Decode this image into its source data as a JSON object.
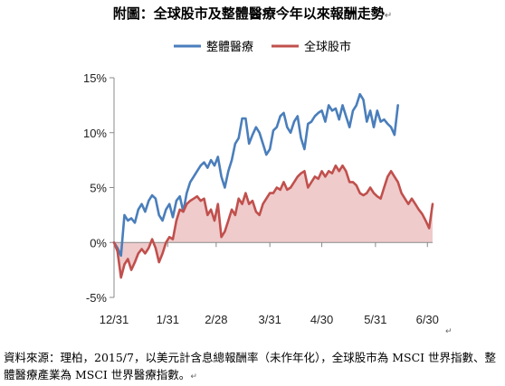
{
  "title": "附圖：全球股市及整體醫療今年以來報酬走勢",
  "paragraph_mark": "↵",
  "source_note": "資料來源：理柏，2015/7，以美元計含息總報酬率（未作年化），全球股市為 MSCI 世界指數、整體醫療產業為 MSCI 世界醫療指數。",
  "chart_data": {
    "type": "line",
    "ylim": [
      -5,
      15
    ],
    "yticks": [
      "15%",
      "10%",
      "5%",
      "0%",
      "-5%"
    ],
    "xticks": [
      "12/31",
      "1/31",
      "2/28",
      "3/31",
      "4/30",
      "5/31",
      "6/30"
    ],
    "grid": false,
    "legend": "top",
    "series": [
      {
        "name": "整體醫療",
        "color": "#4a7ebb",
        "points": [
          [
            0,
            0.0
          ],
          [
            2,
            -0.5
          ],
          [
            4,
            -1.2
          ],
          [
            6,
            2.5
          ],
          [
            8,
            2.0
          ],
          [
            10,
            2.2
          ],
          [
            12,
            1.8
          ],
          [
            14,
            3.0
          ],
          [
            16,
            3.5
          ],
          [
            18,
            2.8
          ],
          [
            20,
            3.8
          ],
          [
            22,
            4.3
          ],
          [
            24,
            4.0
          ],
          [
            26,
            2.5
          ],
          [
            28,
            2.0
          ],
          [
            30,
            3.0
          ],
          [
            32,
            3.5
          ],
          [
            34,
            2.3
          ],
          [
            36,
            3.8
          ],
          [
            38,
            4.2
          ],
          [
            40,
            2.8
          ],
          [
            42,
            4.5
          ],
          [
            44,
            5.5
          ],
          [
            46,
            6.0
          ],
          [
            48,
            6.5
          ],
          [
            50,
            7.0
          ],
          [
            52,
            7.3
          ],
          [
            54,
            6.8
          ],
          [
            56,
            7.5
          ],
          [
            58,
            7.0
          ],
          [
            60,
            7.8
          ],
          [
            62,
            6.0
          ],
          [
            64,
            5.0
          ],
          [
            66,
            6.5
          ],
          [
            68,
            7.5
          ],
          [
            70,
            9.0
          ],
          [
            72,
            9.5
          ],
          [
            74,
            11.3
          ],
          [
            76,
            11.3
          ],
          [
            78,
            9.0
          ],
          [
            80,
            9.8
          ],
          [
            82,
            10.5
          ],
          [
            84,
            10.0
          ],
          [
            86,
            9.0
          ],
          [
            88,
            8.0
          ],
          [
            90,
            8.5
          ],
          [
            92,
            10.2
          ],
          [
            94,
            10.5
          ],
          [
            96,
            11.5
          ],
          [
            98,
            11.8
          ],
          [
            100,
            10.5
          ],
          [
            102,
            10.0
          ],
          [
            104,
            11.0
          ],
          [
            106,
            11.5
          ],
          [
            108,
            9.5
          ],
          [
            110,
            8.5
          ],
          [
            112,
            10.8
          ],
          [
            114,
            11.0
          ],
          [
            116,
            11.5
          ],
          [
            118,
            11.8
          ],
          [
            120,
            12.0
          ],
          [
            122,
            11.0
          ],
          [
            124,
            12.5
          ],
          [
            126,
            12.0
          ],
          [
            128,
            12.2
          ],
          [
            130,
            11.2
          ],
          [
            132,
            12.5
          ],
          [
            134,
            11.5
          ],
          [
            136,
            10.5
          ],
          [
            138,
            12.0
          ],
          [
            140,
            12.5
          ],
          [
            142,
            13.5
          ],
          [
            144,
            13.0
          ],
          [
            146,
            11.0
          ],
          [
            148,
            12.0
          ],
          [
            150,
            10.5
          ],
          [
            152,
            12.0
          ],
          [
            154,
            11.0
          ],
          [
            156,
            11.2
          ],
          [
            158,
            10.8
          ],
          [
            160,
            10.5
          ],
          [
            162,
            9.8
          ],
          [
            164,
            12.5
          ]
        ]
      },
      {
        "name": "全球股市",
        "color": "#c0504d",
        "points": [
          [
            0,
            0.0
          ],
          [
            2,
            -0.8
          ],
          [
            4,
            -3.2
          ],
          [
            6,
            -2.0
          ],
          [
            8,
            -1.5
          ],
          [
            10,
            -2.5
          ],
          [
            12,
            -1.8
          ],
          [
            14,
            -1.0
          ],
          [
            16,
            -0.6
          ],
          [
            18,
            -1.0
          ],
          [
            20,
            -0.5
          ],
          [
            22,
            0.3
          ],
          [
            24,
            -0.5
          ],
          [
            26,
            -1.8
          ],
          [
            28,
            -1.0
          ],
          [
            30,
            0.0
          ],
          [
            32,
            0.5
          ],
          [
            34,
            0.3
          ],
          [
            36,
            2.0
          ],
          [
            38,
            3.0
          ],
          [
            40,
            2.8
          ],
          [
            42,
            3.5
          ],
          [
            44,
            3.8
          ],
          [
            46,
            4.0
          ],
          [
            48,
            4.2
          ],
          [
            50,
            3.8
          ],
          [
            52,
            4.0
          ],
          [
            54,
            2.5
          ],
          [
            56,
            3.0
          ],
          [
            58,
            2.0
          ],
          [
            60,
            3.5
          ],
          [
            62,
            0.5
          ],
          [
            64,
            1.0
          ],
          [
            66,
            2.0
          ],
          [
            68,
            3.0
          ],
          [
            70,
            2.5
          ],
          [
            72,
            4.0
          ],
          [
            74,
            3.5
          ],
          [
            76,
            4.5
          ],
          [
            78,
            3.5
          ],
          [
            80,
            3.8
          ],
          [
            82,
            2.8
          ],
          [
            84,
            2.5
          ],
          [
            86,
            3.5
          ],
          [
            88,
            4.0
          ],
          [
            90,
            4.5
          ],
          [
            92,
            4.5
          ],
          [
            94,
            5.0
          ],
          [
            96,
            4.8
          ],
          [
            98,
            5.5
          ],
          [
            100,
            4.8
          ],
          [
            102,
            5.0
          ],
          [
            104,
            5.5
          ],
          [
            106,
            6.0
          ],
          [
            108,
            6.3
          ],
          [
            110,
            6.5
          ],
          [
            112,
            5.0
          ],
          [
            114,
            5.5
          ],
          [
            116,
            6.0
          ],
          [
            118,
            5.8
          ],
          [
            120,
            6.5
          ],
          [
            122,
            6.0
          ],
          [
            124,
            6.5
          ],
          [
            126,
            6.3
          ],
          [
            128,
            7.0
          ],
          [
            130,
            6.5
          ],
          [
            132,
            7.0
          ],
          [
            134,
            6.5
          ],
          [
            136,
            5.5
          ],
          [
            138,
            5.5
          ],
          [
            140,
            5.2
          ],
          [
            142,
            4.5
          ],
          [
            144,
            4.3
          ],
          [
            146,
            4.5
          ],
          [
            148,
            5.0
          ],
          [
            150,
            4.5
          ],
          [
            152,
            4.2
          ],
          [
            154,
            4.0
          ],
          [
            156,
            5.0
          ],
          [
            158,
            6.0
          ],
          [
            160,
            6.5
          ],
          [
            162,
            6.0
          ],
          [
            164,
            5.5
          ],
          [
            166,
            4.5
          ],
          [
            168,
            4.0
          ],
          [
            170,
            3.5
          ],
          [
            172,
            4.0
          ],
          [
            174,
            3.5
          ],
          [
            176,
            3.0
          ],
          [
            178,
            2.6
          ],
          [
            180,
            2.0
          ],
          [
            182,
            1.3
          ],
          [
            184,
            3.5
          ]
        ]
      }
    ]
  }
}
